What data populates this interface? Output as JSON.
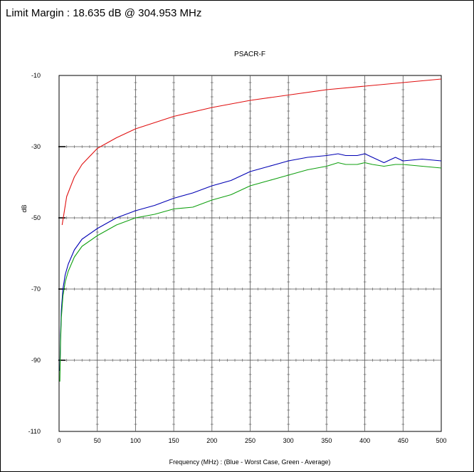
{
  "header": {
    "text": "Limit Margin : 18.635 dB @ 304.953 MHz"
  },
  "chart_data": {
    "type": "line",
    "title": "PSACR-F",
    "xlabel": "Frequency (MHz) : (Blue - Worst Case, Green - Average)",
    "ylabel": "dB",
    "xlim": [
      0,
      500
    ],
    "ylim": [
      -110,
      -10
    ],
    "xticks": [
      0,
      50,
      100,
      150,
      200,
      250,
      300,
      350,
      400,
      450,
      500
    ],
    "yticks": [
      -10,
      -30,
      -50,
      -70,
      -90,
      -110
    ],
    "grid": true,
    "colors": {
      "limit": "#e01010",
      "worst": "#0000b4",
      "average": "#10a010"
    },
    "series": [
      {
        "key": "limit",
        "x": [
          4,
          10,
          20,
          30,
          50,
          75,
          100,
          150,
          200,
          250,
          300,
          350,
          400,
          450,
          500
        ],
        "y": [
          -52,
          -44,
          -38.5,
          -35,
          -30.5,
          -27.5,
          -25,
          -21.5,
          -19,
          -17,
          -15.5,
          -14,
          -13,
          -12,
          -11
        ]
      },
      {
        "key": "worst",
        "x": [
          1,
          2,
          3,
          5,
          8,
          12,
          20,
          30,
          50,
          75,
          100,
          125,
          150,
          175,
          200,
          225,
          250,
          275,
          300,
          325,
          350,
          365,
          375,
          390,
          400,
          410,
          425,
          440,
          450,
          475,
          500
        ],
        "y": [
          -93,
          -83,
          -76,
          -70,
          -66,
          -63,
          -59,
          -56,
          -53,
          -50,
          -48,
          -46.5,
          -44.5,
          -43,
          -41,
          -39.5,
          -37,
          -35.5,
          -34,
          -33,
          -32.5,
          -32,
          -32.5,
          -32.5,
          -32,
          -33,
          -34.5,
          -33,
          -34,
          -33.5,
          -34
        ]
      },
      {
        "key": "average",
        "x": [
          1,
          2,
          3,
          5,
          8,
          12,
          20,
          30,
          50,
          75,
          100,
          125,
          150,
          175,
          200,
          225,
          250,
          275,
          300,
          325,
          350,
          365,
          375,
          390,
          400,
          410,
          425,
          440,
          450,
          475,
          500
        ],
        "y": [
          -96,
          -85,
          -78,
          -72,
          -68,
          -65,
          -61,
          -58,
          -55,
          -52,
          -50,
          -49,
          -47.5,
          -47,
          -45,
          -43.5,
          -41,
          -39.5,
          -38,
          -36.5,
          -35.5,
          -34.5,
          -35,
          -35,
          -34.5,
          -35,
          -35.5,
          -35,
          -35,
          -35.5,
          -36
        ]
      }
    ]
  }
}
